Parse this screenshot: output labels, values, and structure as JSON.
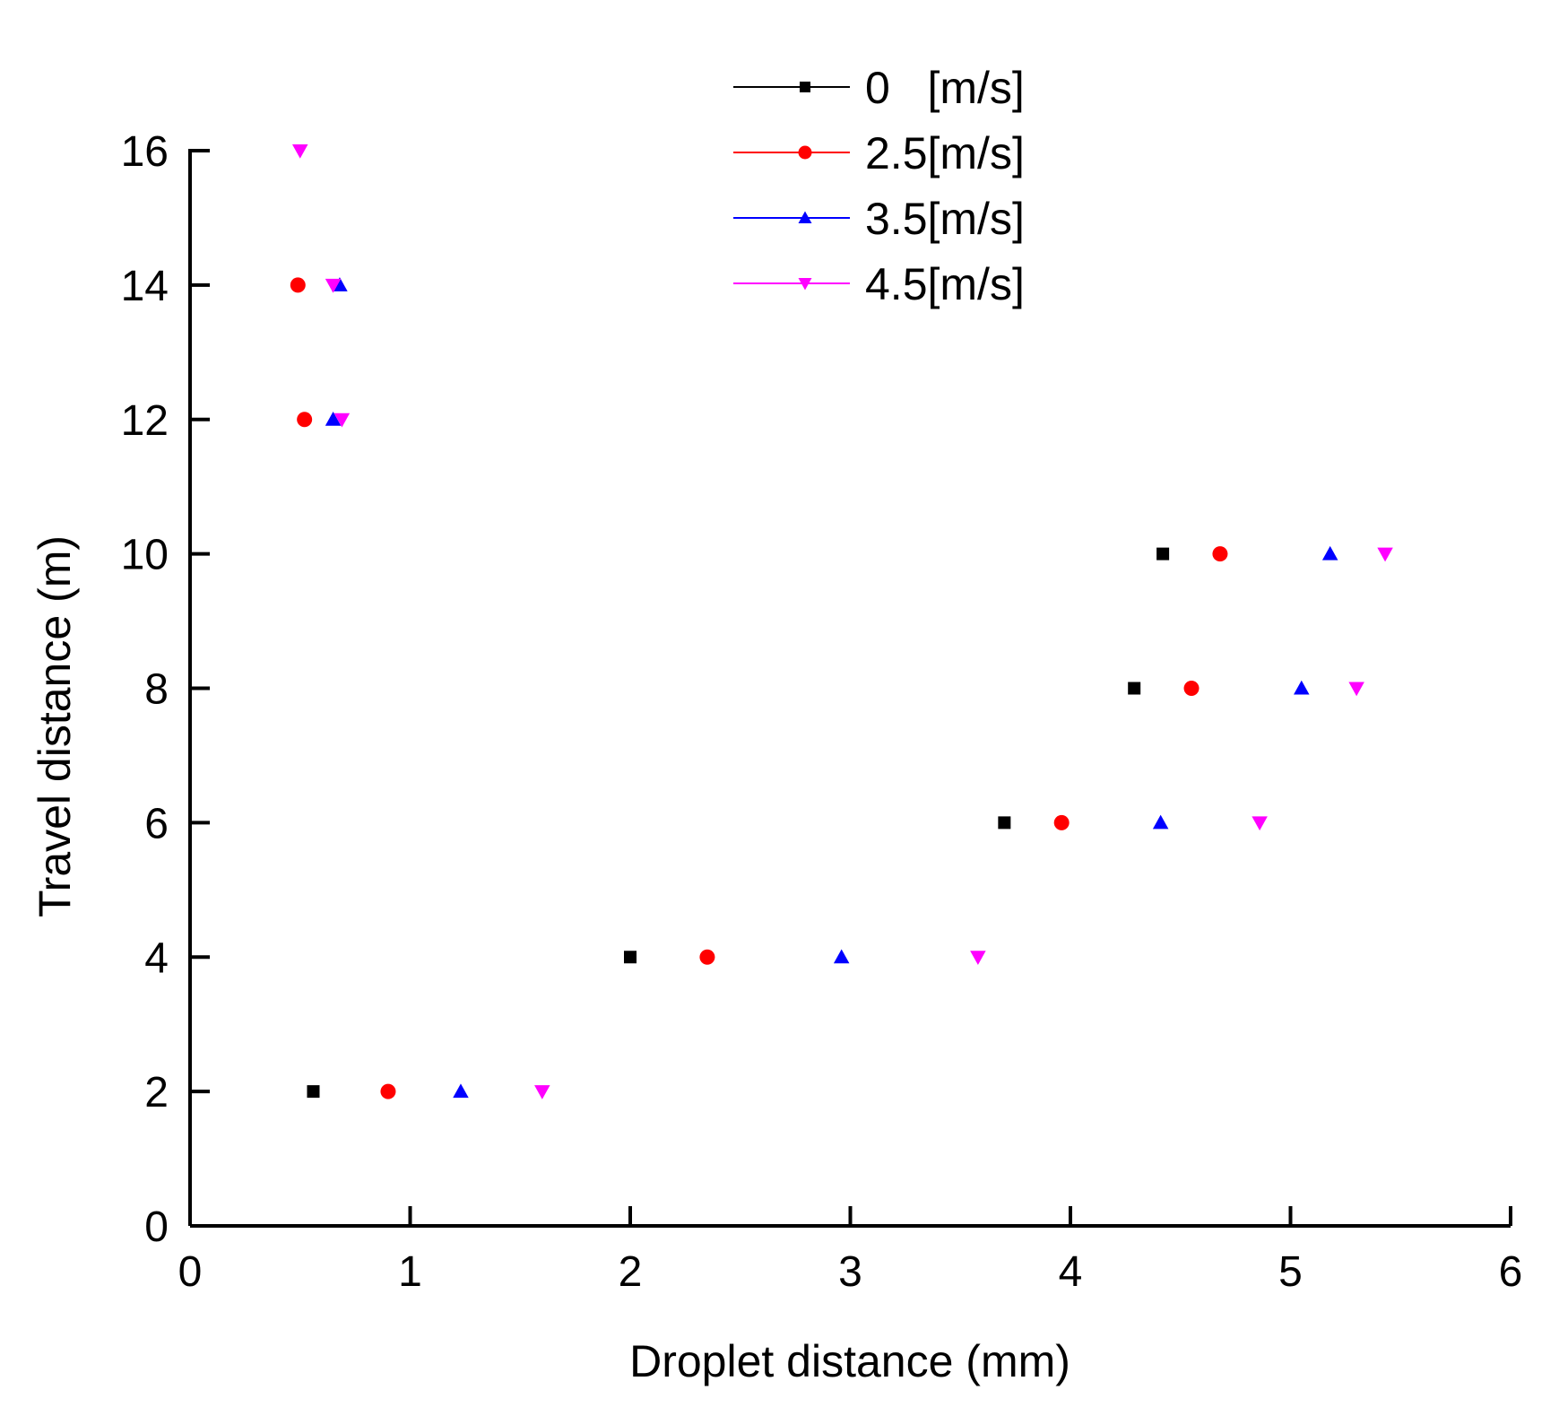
{
  "chart_data": {
    "type": "scatter",
    "title": "",
    "xlabel": "Droplet distance (mm)",
    "ylabel": "Travel distance (m)",
    "xlim": [
      0,
      6
    ],
    "ylim": [
      0,
      16
    ],
    "xticks": [
      0,
      1,
      2,
      3,
      4,
      5,
      6
    ],
    "yticks": [
      0,
      2,
      4,
      6,
      8,
      10,
      12,
      14,
      16
    ],
    "grid": false,
    "legend_position": "top-center",
    "series": [
      {
        "name": "0   [m/s]",
        "color": "#000000",
        "marker": "square",
        "points": [
          {
            "x": 0.56,
            "y": 2
          },
          {
            "x": 2.0,
            "y": 4
          },
          {
            "x": 3.7,
            "y": 6
          },
          {
            "x": 4.29,
            "y": 8
          },
          {
            "x": 4.42,
            "y": 10
          }
        ]
      },
      {
        "name": "2.5[m/s]",
        "color": "#ff0000",
        "marker": "circle",
        "points": [
          {
            "x": 0.9,
            "y": 2
          },
          {
            "x": 2.35,
            "y": 4
          },
          {
            "x": 3.96,
            "y": 6
          },
          {
            "x": 4.55,
            "y": 8
          },
          {
            "x": 4.68,
            "y": 10
          },
          {
            "x": 0.52,
            "y": 12
          },
          {
            "x": 0.49,
            "y": 14
          }
        ]
      },
      {
        "name": "3.5[m/s]",
        "color": "#0000ff",
        "marker": "triangle-up",
        "points": [
          {
            "x": 1.23,
            "y": 2
          },
          {
            "x": 2.96,
            "y": 4
          },
          {
            "x": 4.41,
            "y": 6
          },
          {
            "x": 5.05,
            "y": 8
          },
          {
            "x": 5.18,
            "y": 10
          },
          {
            "x": 0.65,
            "y": 12
          },
          {
            "x": 0.68,
            "y": 14
          }
        ]
      },
      {
        "name": "4.5[m/s]",
        "color": "#ff00ff",
        "marker": "triangle-down",
        "points": [
          {
            "x": 1.6,
            "y": 2
          },
          {
            "x": 3.58,
            "y": 4
          },
          {
            "x": 4.86,
            "y": 6
          },
          {
            "x": 5.3,
            "y": 8
          },
          {
            "x": 5.43,
            "y": 10
          },
          {
            "x": 0.69,
            "y": 12
          },
          {
            "x": 0.65,
            "y": 14
          },
          {
            "x": 0.5,
            "y": 16
          }
        ]
      }
    ]
  }
}
